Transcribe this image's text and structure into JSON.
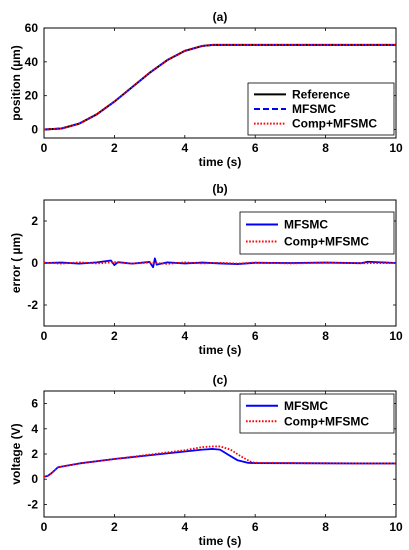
{
  "chart_data": [
    {
      "type": "line",
      "panel_label": "(a)",
      "xlabel": "time (s)",
      "ylabel": "position (µm)",
      "xlim": [
        0,
        10
      ],
      "ylim": [
        -5,
        60
      ],
      "xticks": [
        0,
        2,
        4,
        6,
        8,
        10
      ],
      "yticks": [
        0,
        20,
        40,
        60
      ],
      "legend_position": "bottom-right",
      "series": [
        {
          "name": "Reference",
          "color": "#000000",
          "style": "solid",
          "x": [
            0,
            0.5,
            1,
            1.5,
            2,
            2.5,
            3,
            3.5,
            4,
            4.5,
            4.8,
            5,
            6,
            7,
            8,
            9,
            10
          ],
          "y": [
            0,
            0.6,
            3.5,
            9,
            16.5,
            25,
            33.5,
            41,
            46.5,
            49.4,
            50,
            50,
            50,
            50,
            50,
            50,
            50
          ]
        },
        {
          "name": "MFSMC",
          "color": "#0000ff",
          "style": "dashed",
          "x": [
            0,
            0.5,
            1,
            1.5,
            2,
            2.5,
            3,
            3.5,
            4,
            4.5,
            4.8,
            5,
            6,
            7,
            8,
            9,
            10
          ],
          "y": [
            0,
            0.6,
            3.5,
            9,
            16.5,
            25,
            33.5,
            41,
            46.5,
            49.4,
            50,
            50,
            50,
            50,
            50,
            50,
            50
          ]
        },
        {
          "name": "Comp+MFSMC",
          "color": "#ff0000",
          "style": "dotted",
          "x": [
            0,
            0.5,
            1,
            1.5,
            2,
            2.5,
            3,
            3.5,
            4,
            4.5,
            4.8,
            5,
            6,
            7,
            8,
            9,
            10
          ],
          "y": [
            0,
            0.6,
            3.5,
            9,
            16.5,
            25,
            33.5,
            41,
            46.5,
            49.4,
            50,
            50,
            50,
            50,
            50,
            50,
            50
          ]
        }
      ]
    },
    {
      "type": "line",
      "panel_label": "(b)",
      "xlabel": "time (s)",
      "ylabel": "error ( µm)",
      "xlim": [
        0,
        10
      ],
      "ylim": [
        -3,
        3
      ],
      "xticks": [
        0,
        2,
        4,
        6,
        8,
        10
      ],
      "yticks": [
        -2,
        0,
        2
      ],
      "legend_position": "top-right",
      "series": [
        {
          "name": "MFSMC",
          "color": "#0000ff",
          "style": "solid",
          "x": [
            0,
            0.5,
            1,
            1.5,
            1.9,
            2,
            2.1,
            2.5,
            3,
            3.1,
            3.15,
            3.2,
            3.5,
            4,
            4.5,
            5,
            5.5,
            6,
            7,
            8,
            9,
            9.2,
            10
          ],
          "y": [
            0,
            0.02,
            -0.03,
            0.03,
            0.12,
            -0.1,
            0.04,
            -0.03,
            0.05,
            -0.2,
            0.22,
            -0.08,
            0.03,
            -0.02,
            0.02,
            -0.02,
            -0.05,
            0.01,
            0.0,
            0.02,
            -0.01,
            0.06,
            0.0
          ]
        },
        {
          "name": "Comp+MFSMC",
          "color": "#ff0000",
          "style": "dotted",
          "x": [
            0,
            0.5,
            1,
            1.5,
            2,
            2.5,
            3,
            3.5,
            4,
            4.5,
            5,
            5.5,
            6,
            7,
            8,
            9,
            10
          ],
          "y": [
            0.02,
            -0.03,
            0.03,
            -0.02,
            0.04,
            -0.03,
            0.02,
            -0.04,
            0.03,
            -0.02,
            0.01,
            -0.03,
            0.02,
            -0.02,
            0.01,
            -0.01,
            0.0
          ]
        }
      ]
    },
    {
      "type": "line",
      "panel_label": "(c)",
      "xlabel": "time (s)",
      "ylabel": "voltage (V)",
      "xlim": [
        0,
        10
      ],
      "ylim": [
        -3,
        7
      ],
      "xticks": [
        0,
        2,
        4,
        6,
        8,
        10
      ],
      "yticks": [
        -2,
        0,
        2,
        4,
        6
      ],
      "legend_position": "top-right",
      "series": [
        {
          "name": "MFSMC",
          "color": "#0000ff",
          "style": "solid",
          "x": [
            0,
            0.1,
            0.2,
            0.3,
            0.4,
            0.5,
            1,
            2,
            3,
            4,
            4.5,
            4.8,
            5.0,
            5.2,
            5.5,
            5.8,
            6,
            7,
            8,
            9,
            10
          ],
          "y": [
            0.2,
            0.25,
            0.45,
            0.7,
            0.95,
            1.0,
            1.25,
            1.6,
            1.9,
            2.2,
            2.35,
            2.4,
            2.35,
            2.0,
            1.5,
            1.3,
            1.28,
            1.27,
            1.26,
            1.25,
            1.25
          ]
        },
        {
          "name": "Comp+MFSMC",
          "color": "#ff0000",
          "style": "dotted",
          "x": [
            0,
            0.1,
            0.2,
            0.3,
            0.4,
            0.5,
            1,
            2,
            3,
            4,
            4.5,
            4.8,
            5.0,
            5.3,
            5.6,
            5.9,
            6,
            7,
            8,
            9,
            10
          ],
          "y": [
            0.2,
            0.25,
            0.45,
            0.7,
            0.95,
            1.0,
            1.25,
            1.6,
            1.95,
            2.3,
            2.55,
            2.6,
            2.6,
            2.35,
            1.8,
            1.35,
            1.3,
            1.28,
            1.26,
            1.25,
            1.25
          ]
        }
      ]
    }
  ]
}
